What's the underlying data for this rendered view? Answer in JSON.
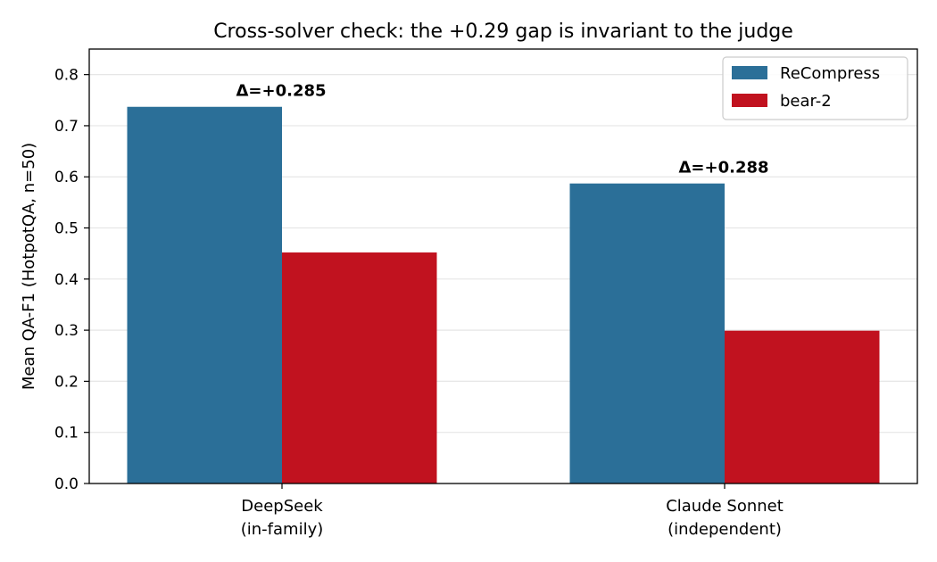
{
  "chart_data": {
    "type": "bar",
    "title": "Cross-solver check: the +0.29 gap is invariant to the judge",
    "ylabel": "Mean QA-F1 (HotpotQA, n=50)",
    "xlabel": "",
    "ylim": [
      0,
      0.85
    ],
    "yticks": [
      "0.0",
      "0.1",
      "0.2",
      "0.3",
      "0.4",
      "0.5",
      "0.6",
      "0.7",
      "0.8"
    ],
    "categories": [
      [
        "DeepSeek",
        "(in-family)"
      ],
      [
        "Claude Sonnet",
        "(independent)"
      ]
    ],
    "series": [
      {
        "name": "ReCompress",
        "color": "#2b6f98",
        "values": [
          0.737,
          0.587
        ]
      },
      {
        "name": "bear-2",
        "color": "#c1121f",
        "values": [
          0.452,
          0.299
        ]
      }
    ],
    "annotations": [
      "Δ=+0.285",
      "Δ=+0.288"
    ],
    "grid": "y",
    "legend": "top-right"
  }
}
